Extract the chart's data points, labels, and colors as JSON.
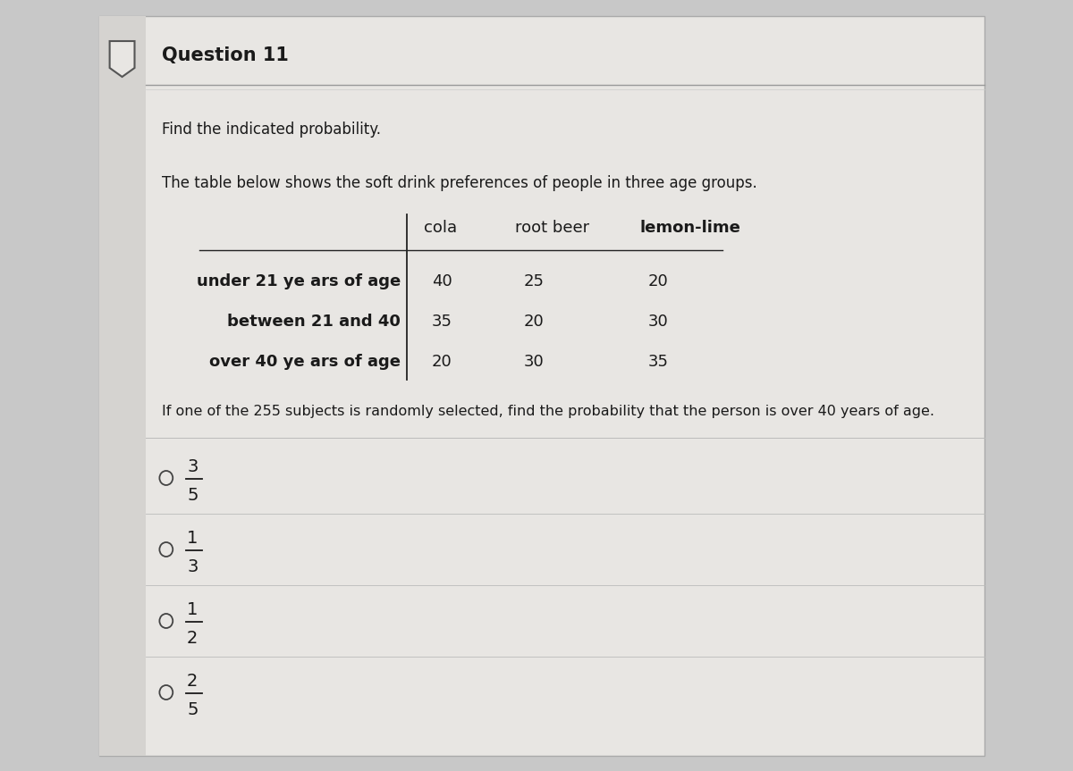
{
  "title": "Question 11",
  "subtitle1": "Find the indicated probability.",
  "subtitle2": "The table below shows the soft drink preferences of people in three age groups.",
  "table_headers": [
    "cola",
    "root beer",
    "lemon-lime"
  ],
  "table_rows": [
    {
      "label": "under 21 ye ars of age",
      "values": [
        40,
        25,
        20
      ]
    },
    {
      "label": "between 21 and 40",
      "values": [
        35,
        20,
        30
      ]
    },
    {
      "label": "over 40 ye ars of age",
      "values": [
        20,
        30,
        35
      ]
    }
  ],
  "question_text": "If one of the 255 subjects is randomly selected, find the probability that the person is over 40 years of age.",
  "choices": [
    {
      "numerator": "3",
      "denominator": "5"
    },
    {
      "numerator": "1",
      "denominator": "3"
    },
    {
      "numerator": "1",
      "denominator": "2"
    },
    {
      "numerator": "2",
      "denominator": "5"
    }
  ],
  "outer_bg": "#c8c8c8",
  "card_bg": "#e8e6e3",
  "card_left_bg": "#d5d3d0",
  "text_color": "#1a1a1a",
  "title_fontsize": 15,
  "body_fontsize": 12,
  "table_fontsize": 13
}
